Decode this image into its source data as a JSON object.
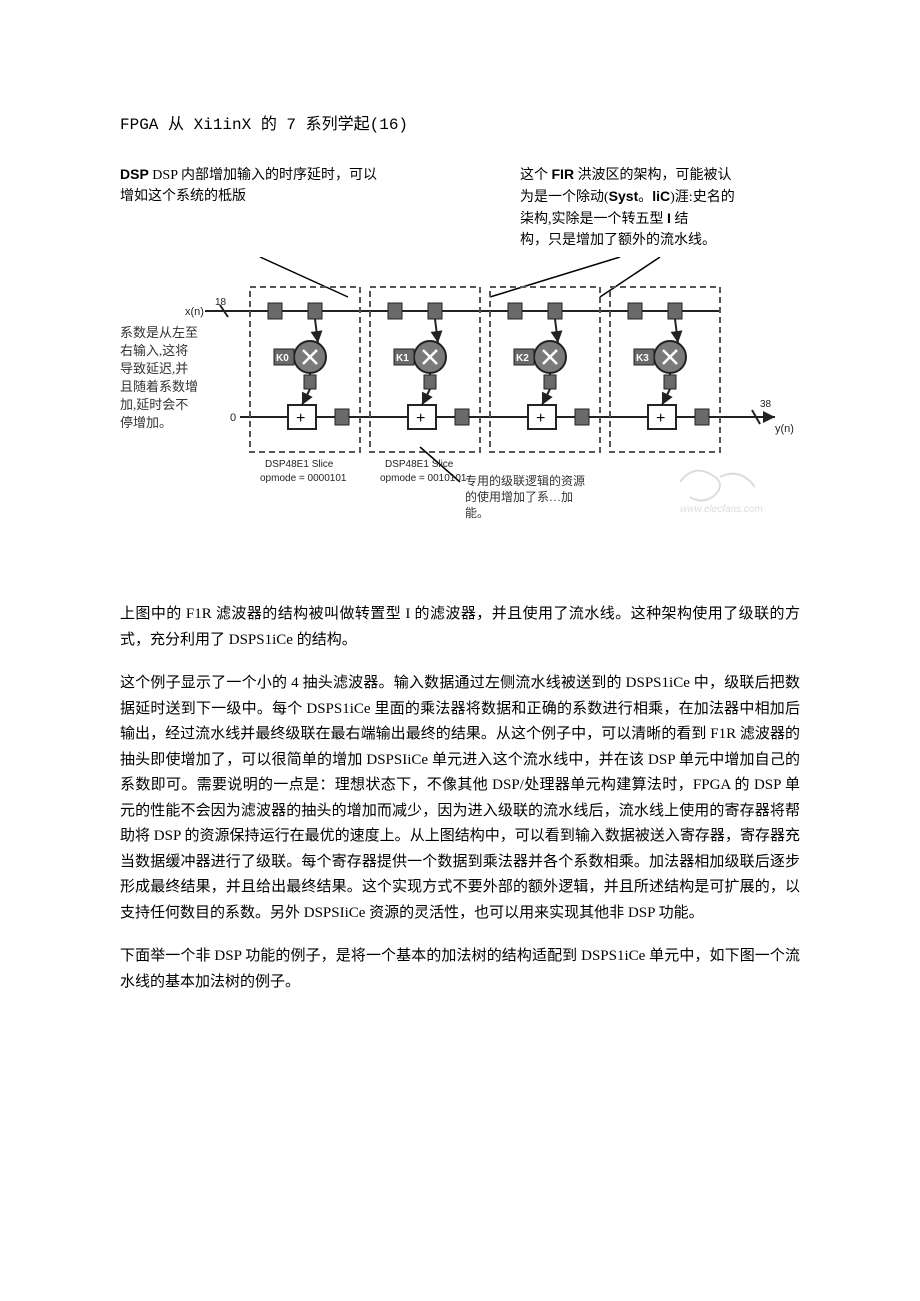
{
  "title": "FPGA 从 Xi1inX 的 7 系列学起(16)",
  "annotations": {
    "top_left_line1": "DSP 内部增加输入的时序延时，可以",
    "top_left_line2": "增如这个系统的柢版",
    "top_right_line1": "这个 FIR 洪波区的架构，可能被认",
    "top_right_line2": "为是一个除动(Syst。liC)涯:史名的",
    "top_right_line3": "柒构,实除是一个转五型 I 结",
    "top_right_line4": "构，只是增加了额外的流水线。"
  },
  "diagram": {
    "type": "flowchart",
    "input_label": "x(n)",
    "input_bits": "18",
    "output_label": "y(n)",
    "output_bits": "38",
    "zero_label": "0",
    "slices": [
      {
        "coef": "K0",
        "name": "DSP48E1 Slice",
        "opmode": "opmode = 0000101"
      },
      {
        "coef": "K1",
        "name": "DSP48E1 Slice",
        "opmode": "opmode = 0010101"
      },
      {
        "coef": "K2"
      },
      {
        "coef": "K3"
      }
    ],
    "left_annot": [
      "系数是从左至",
      "右输入,这将",
      "导致延迟,并",
      "且随着系数增",
      "加,延时会不",
      "停增加。"
    ],
    "bottom_annot": [
      "专用的级联逻辑的资源",
      "的使用增加了系…加",
      "能。"
    ],
    "watermark": "www.elecfans.com",
    "colors": {
      "slice_border": "#555555",
      "slice_dash": "6,4",
      "box_fill": "#ffffff",
      "box_stroke": "#222222",
      "reg_fill": "#6a6a6a",
      "mult_fill": "#7a7a7a",
      "mult_stroke": "#222222",
      "line": "#222222",
      "annot_line": "#000000",
      "coef_text": "#ffffff"
    }
  },
  "body": {
    "p1": "上图中的 F1R 滤波器的结构被叫做转置型 I 的滤波器，并且使用了流水线。这种架构使用了级联的方式，充分利用了 DSPS1iCe 的结构。",
    "p2": "这个例子显示了一个小的 4 抽头滤波器。输入数据通过左侧流水线被送到的 DSPS1iCe 中，级联后把数据延时送到下一级中。每个 DSPS1iCe 里面的乘法器将数据和正确的系数进行相乘，在加法器中相加后输出，经过流水线并最终级联在最右端输出最终的结果。从这个例子中，可以清晰的看到 F1R 滤波器的抽头即使增加了，可以很简单的增加 DSPSIiCe 单元进入这个流水线中，并在该 DSP 单元中增加自己的系数即可。需要说明的一点是：理想状态下，不像其他 DSP/处理器单元构建算法时，FPGA 的 DSP 单元的性能不会因为滤波器的抽头的增加而减少，因为进入级联的流水线后，流水线上使用的寄存器将帮助将 DSP 的资源保持运行在最优的速度上。从上图结构中，可以看到输入数据被送入寄存器，寄存器充当数据缓冲器进行了级联。每个寄存器提供一个数据到乘法器并各个系数相乘。加法器相加级联后逐步形成最终结果，并且给出最终结果。这个实现方式不要外部的额外逻辑，并且所述结构是可扩展的，以支持任何数目的系数。另外 DSPSIiCe 资源的灵活性，也可以用来实现其他非 DSP 功能。",
    "p3": "下面举一个非 DSP 功能的例子，是将一个基本的加法树的结构适配到 DSPS1iCe 单元中，如下图一个流水线的基本加法树的例子。"
  }
}
